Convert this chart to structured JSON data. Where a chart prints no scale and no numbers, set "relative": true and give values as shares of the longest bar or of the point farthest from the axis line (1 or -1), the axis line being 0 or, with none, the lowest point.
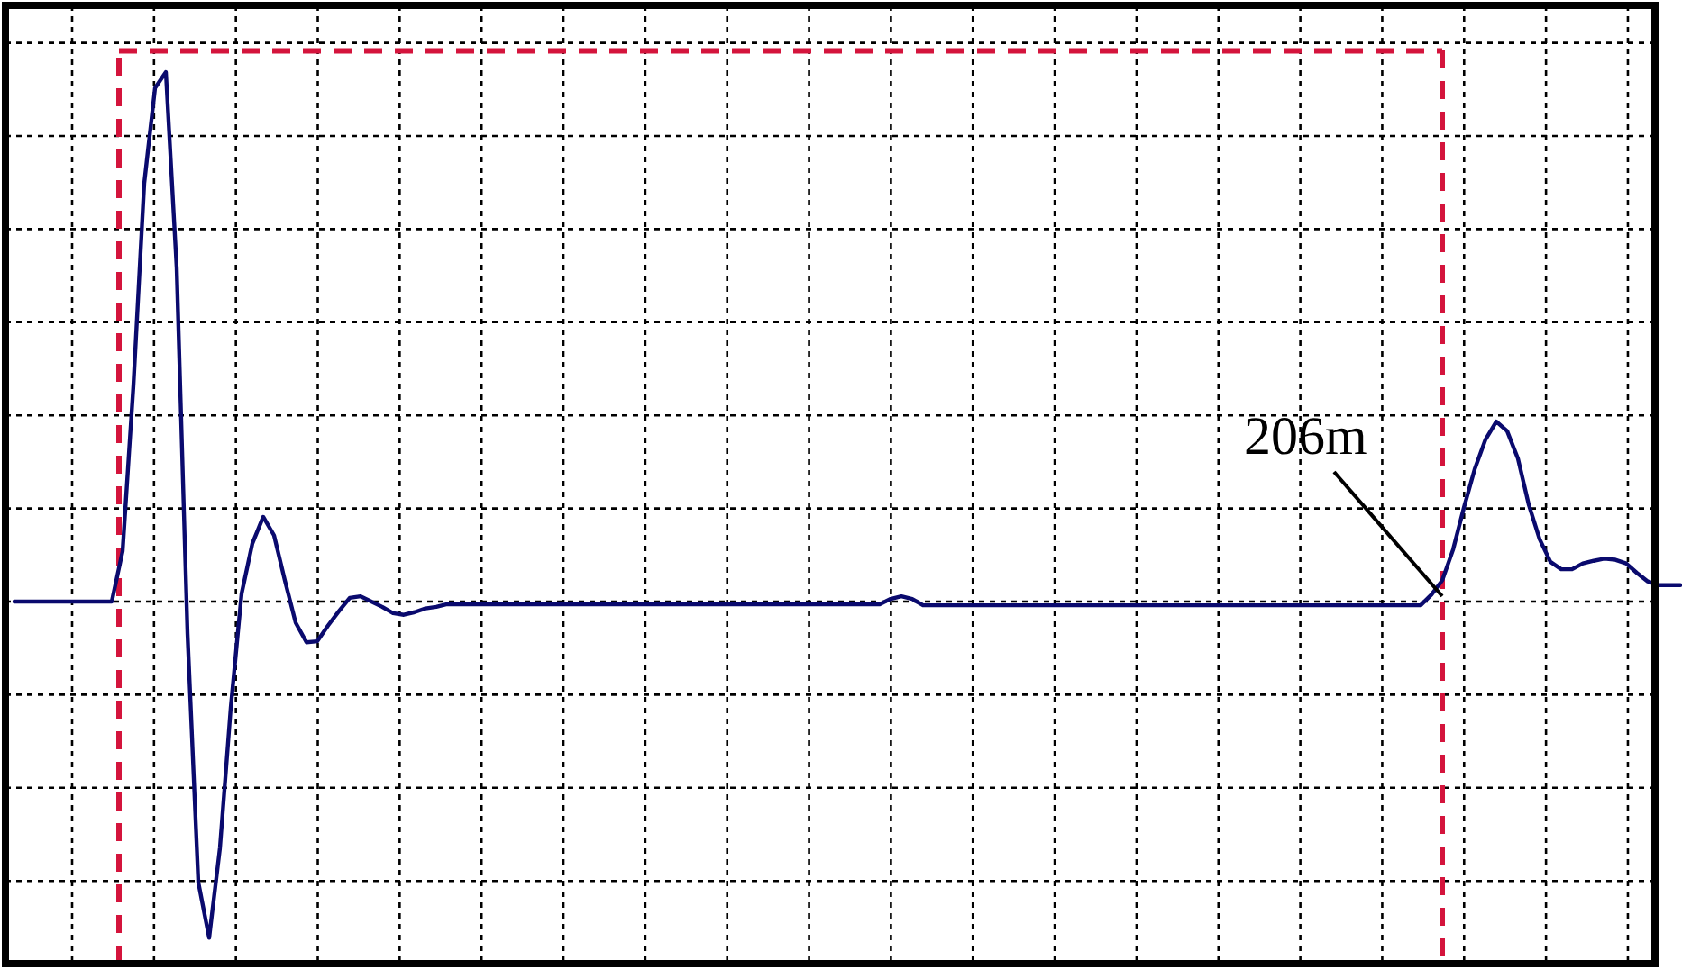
{
  "chart_data": {
    "type": "line",
    "relative": true,
    "grid": true,
    "line_style": "solid",
    "categories": [
      null,
      null,
      null,
      null,
      null,
      null,
      null,
      null,
      null,
      null,
      null,
      null,
      null,
      null,
      null,
      null,
      null,
      null,
      null,
      null,
      null,
      null,
      null,
      null,
      null,
      null,
      null,
      null,
      null,
      null,
      null,
      null,
      null,
      null,
      null,
      null,
      null,
      null,
      null,
      null,
      null,
      null,
      null,
      null,
      null,
      null,
      null,
      null,
      null,
      null,
      null,
      null,
      null,
      null,
      null,
      null,
      null,
      null,
      null,
      null,
      null,
      null,
      null,
      null,
      null,
      null,
      null,
      null,
      null,
      null,
      null,
      null,
      null,
      null,
      null,
      null,
      null,
      null,
      null,
      null,
      null,
      null,
      null,
      null,
      null,
      null,
      null,
      null,
      null,
      null,
      null,
      null,
      null,
      null,
      null,
      null,
      null,
      null,
      null,
      null,
      null,
      null,
      null,
      null,
      null,
      null,
      null,
      null,
      null,
      null,
      null,
      null,
      null,
      null,
      null,
      null,
      null,
      null,
      null,
      null,
      null,
      null,
      null,
      null,
      null,
      null,
      null,
      null,
      null,
      null,
      null,
      null,
      null,
      null,
      null,
      null,
      null,
      null,
      null,
      null,
      null,
      null,
      null,
      null,
      null,
      null,
      null,
      null,
      null,
      null,
      null,
      null,
      null,
      null,
      null
    ],
    "series": [
      {
        "color": "#0a0a6e",
        "values": [
          0,
          0,
          0,
          0,
          0,
          0,
          0,
          0,
          0,
          0,
          0.095,
          0.408,
          0.79,
          0.97,
          1,
          0.63,
          -0.06,
          -0.53,
          -0.635,
          -0.465,
          -0.2,
          0.015,
          0.11,
          0.16,
          0.125,
          0.04,
          -0.04,
          -0.077,
          -0.075,
          -0.045,
          -0.018,
          0.007,
          0.01,
          0,
          -0.01,
          -0.022,
          -0.025,
          -0.02,
          -0.013,
          -0.01,
          -0.005,
          -0.005,
          -0.005,
          -0.005,
          -0.005,
          -0.005,
          -0.005,
          -0.005,
          -0.005,
          -0.005,
          -0.005,
          -0.005,
          -0.005,
          -0.005,
          -0.005,
          -0.005,
          -0.005,
          -0.005,
          -0.005,
          -0.005,
          -0.005,
          -0.005,
          -0.005,
          -0.005,
          -0.005,
          -0.005,
          -0.005,
          -0.005,
          -0.005,
          -0.005,
          -0.005,
          -0.005,
          -0.005,
          -0.005,
          -0.005,
          -0.005,
          -0.005,
          -0.005,
          -0.005,
          -0.005,
          -0.005,
          0.005,
          0.01,
          0.005,
          -0.007,
          -0.007,
          -0.007,
          -0.007,
          -0.007,
          -0.007,
          -0.007,
          -0.007,
          -0.007,
          -0.007,
          -0.007,
          -0.007,
          -0.007,
          -0.007,
          -0.007,
          -0.007,
          -0.007,
          -0.007,
          -0.007,
          -0.007,
          -0.007,
          -0.007,
          -0.007,
          -0.007,
          -0.007,
          -0.007,
          -0.007,
          -0.007,
          -0.007,
          -0.007,
          -0.007,
          -0.007,
          -0.007,
          -0.007,
          -0.007,
          -0.007,
          -0.007,
          -0.007,
          -0.007,
          -0.007,
          -0.007,
          -0.007,
          -0.007,
          -0.007,
          -0.007,
          -0.007,
          -0.007,
          0.013,
          0.04,
          0.098,
          0.177,
          0.25,
          0.306,
          0.34,
          0.322,
          0.27,
          0.183,
          0.118,
          0.075,
          0.061,
          0.061,
          0.072,
          0.077,
          0.081,
          0.079,
          0.072,
          0.054,
          0.038,
          0.031,
          0.031,
          0.031
        ]
      }
    ],
    "ref_lines": [
      {
        "axis": "y",
        "value": 1.04,
        "color": "#d4143c",
        "line_style": "dashed"
      }
    ],
    "annotations": [
      "206m"
    ]
  }
}
